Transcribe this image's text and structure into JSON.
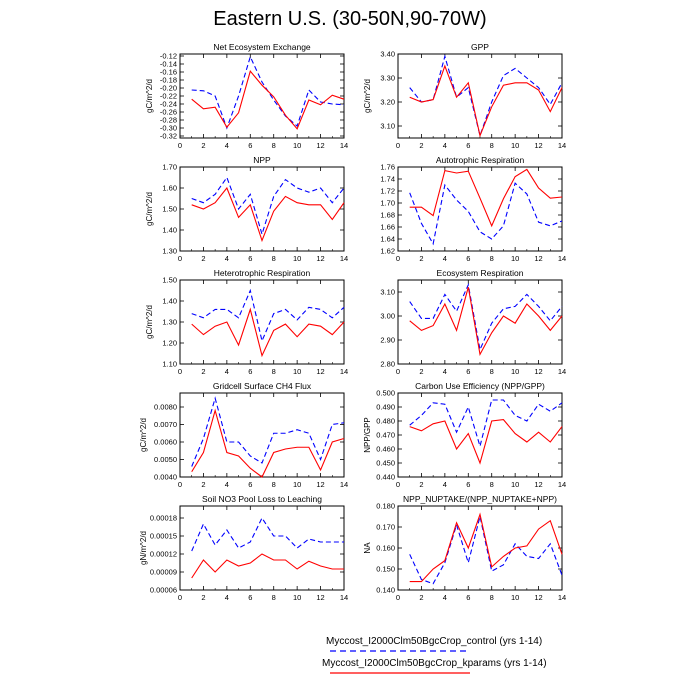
{
  "title": "Eastern U.S. (30-50N,90-70W)",
  "legend": {
    "control_label": "Myccost_I2000Clm50BgcCrop_control (yrs 1-14)",
    "kparams_label": "Myccost_I2000Clm50BgcCrop_kparams (yrs 1-14)",
    "control_color": "#0000ff",
    "kparams_color": "#ff0000"
  },
  "chart_data": [
    {
      "type": "line",
      "title": "Net Ecosystem Exchange",
      "ylabel": "gC/m^2/d",
      "xlim": [
        0,
        14
      ],
      "xticks": [
        0,
        2,
        4,
        6,
        8,
        10,
        12,
        14
      ],
      "ylim": [
        -0.325,
        -0.115
      ],
      "yticks": [
        -0.32,
        -0.3,
        -0.28,
        -0.26,
        -0.24,
        -0.22,
        -0.2,
        -0.18,
        -0.16,
        -0.14,
        -0.12
      ],
      "ytick_labels": [
        "-0.32",
        "-0.30",
        "-0.28",
        "-0.26",
        "-0.24",
        "-0.22",
        "-0.20",
        "-0.18",
        "-0.16",
        "-0.14",
        "-0.12"
      ],
      "x": [
        1,
        2,
        3,
        4,
        5,
        6,
        7,
        8,
        9,
        10,
        11,
        12,
        13,
        14
      ],
      "series": [
        {
          "values": [
            -0.205,
            -0.207,
            -0.22,
            -0.3,
            -0.22,
            -0.122,
            -0.185,
            -0.23,
            -0.27,
            -0.295,
            -0.205,
            -0.235,
            -0.24,
            -0.242
          ]
        },
        {
          "values": [
            -0.228,
            -0.252,
            -0.248,
            -0.298,
            -0.262,
            -0.158,
            -0.193,
            -0.222,
            -0.268,
            -0.302,
            -0.23,
            -0.242,
            -0.218,
            -0.228
          ]
        }
      ]
    },
    {
      "type": "line",
      "title": "GPP",
      "ylabel": "gC/m^2/d",
      "xlim": [
        0,
        14
      ],
      "xticks": [
        0,
        2,
        4,
        6,
        8,
        10,
        12,
        14
      ],
      "ylim": [
        3.05,
        3.4
      ],
      "yticks": [
        3.1,
        3.2,
        3.3,
        3.4
      ],
      "ytick_labels": [
        "3.10",
        "3.20",
        "3.30",
        "3.40"
      ],
      "x": [
        1,
        2,
        3,
        4,
        5,
        6,
        7,
        8,
        9,
        10,
        11,
        12,
        13,
        14
      ],
      "series": [
        {
          "values": [
            3.26,
            3.2,
            3.21,
            3.39,
            3.22,
            3.26,
            3.06,
            3.2,
            3.31,
            3.34,
            3.3,
            3.26,
            3.19,
            3.28
          ]
        },
        {
          "values": [
            3.22,
            3.2,
            3.21,
            3.35,
            3.22,
            3.28,
            3.06,
            3.18,
            3.27,
            3.28,
            3.28,
            3.25,
            3.16,
            3.26
          ]
        }
      ]
    },
    {
      "type": "line",
      "title": "NPP",
      "ylabel": "gC/m^2/d",
      "xlim": [
        0,
        14
      ],
      "xticks": [
        0,
        2,
        4,
        6,
        8,
        10,
        12,
        14
      ],
      "ylim": [
        1.3,
        1.7
      ],
      "yticks": [
        1.3,
        1.4,
        1.5,
        1.6,
        1.7
      ],
      "ytick_labels": [
        "1.30",
        "1.40",
        "1.50",
        "1.60",
        "1.70"
      ],
      "x": [
        1,
        2,
        3,
        4,
        5,
        6,
        7,
        8,
        9,
        10,
        11,
        12,
        13,
        14
      ],
      "series": [
        {
          "values": [
            1.55,
            1.53,
            1.57,
            1.65,
            1.5,
            1.57,
            1.38,
            1.56,
            1.64,
            1.6,
            1.58,
            1.6,
            1.53,
            1.6
          ]
        },
        {
          "values": [
            1.52,
            1.5,
            1.53,
            1.6,
            1.46,
            1.52,
            1.35,
            1.49,
            1.56,
            1.53,
            1.52,
            1.52,
            1.45,
            1.53
          ]
        }
      ]
    },
    {
      "type": "line",
      "title": "Autotrophic Respiration",
      "ylabel": "",
      "xlim": [
        0,
        14
      ],
      "xticks": [
        0,
        2,
        4,
        6,
        8,
        10,
        12,
        14
      ],
      "ylim": [
        1.62,
        1.76
      ],
      "yticks": [
        1.62,
        1.64,
        1.66,
        1.68,
        1.7,
        1.72,
        1.74,
        1.76
      ],
      "ytick_labels": [
        "1.62",
        "1.64",
        "1.66",
        "1.68",
        "1.70",
        "1.72",
        "1.74",
        "1.76"
      ],
      "x": [
        1,
        2,
        3,
        4,
        5,
        6,
        7,
        8,
        9,
        10,
        11,
        12,
        13,
        14
      ],
      "series": [
        {
          "values": [
            1.717,
            1.666,
            1.632,
            1.73,
            1.705,
            1.686,
            1.652,
            1.64,
            1.662,
            1.733,
            1.715,
            1.668,
            1.662,
            1.67
          ]
        },
        {
          "values": [
            1.693,
            1.693,
            1.679,
            1.754,
            1.75,
            1.753,
            1.708,
            1.662,
            1.707,
            1.744,
            1.756,
            1.725,
            1.708,
            1.71
          ]
        }
      ]
    },
    {
      "type": "line",
      "title": "Heterotrophic Respiration",
      "ylabel": "gC/m^2/d",
      "xlim": [
        0,
        14
      ],
      "xticks": [
        0,
        2,
        4,
        6,
        8,
        10,
        12,
        14
      ],
      "ylim": [
        1.1,
        1.5
      ],
      "yticks": [
        1.1,
        1.2,
        1.3,
        1.4,
        1.5
      ],
      "ytick_labels": [
        "1.10",
        "1.20",
        "1.30",
        "1.40",
        "1.50"
      ],
      "x": [
        1,
        2,
        3,
        4,
        5,
        6,
        7,
        8,
        9,
        10,
        11,
        12,
        13,
        14
      ],
      "series": [
        {
          "values": [
            1.34,
            1.32,
            1.36,
            1.36,
            1.32,
            1.45,
            1.21,
            1.34,
            1.36,
            1.31,
            1.37,
            1.36,
            1.32,
            1.37
          ]
        },
        {
          "values": [
            1.29,
            1.24,
            1.28,
            1.3,
            1.19,
            1.36,
            1.14,
            1.26,
            1.29,
            1.23,
            1.29,
            1.28,
            1.24,
            1.3
          ]
        }
      ]
    },
    {
      "type": "line",
      "title": "Ecosystem Respiration",
      "ylabel": "",
      "xlim": [
        0,
        14
      ],
      "xticks": [
        0,
        2,
        4,
        6,
        8,
        10,
        12,
        14
      ],
      "ylim": [
        2.8,
        3.15
      ],
      "yticks": [
        2.8,
        2.9,
        3.0,
        3.1
      ],
      "ytick_labels": [
        "2.80",
        "2.90",
        "3.00",
        "3.10"
      ],
      "x": [
        1,
        2,
        3,
        4,
        5,
        6,
        7,
        8,
        9,
        10,
        11,
        12,
        13,
        14
      ],
      "series": [
        {
          "values": [
            3.06,
            2.99,
            2.99,
            3.09,
            3.02,
            3.13,
            2.86,
            2.97,
            3.03,
            3.04,
            3.09,
            3.04,
            2.98,
            3.04
          ]
        },
        {
          "values": [
            2.98,
            2.94,
            2.96,
            3.05,
            2.94,
            3.12,
            2.84,
            2.93,
            3.0,
            2.97,
            3.05,
            3.0,
            2.94,
            3.0
          ]
        }
      ]
    },
    {
      "type": "line",
      "title": "Gridcell Surface CH4 Flux",
      "ylabel": "gC/m^2/d",
      "xlim": [
        0,
        14
      ],
      "xticks": [
        0,
        2,
        4,
        6,
        8,
        10,
        12,
        14
      ],
      "ylim": [
        0.004,
        0.0088
      ],
      "yticks": [
        0.004,
        0.005,
        0.006,
        0.007,
        0.008
      ],
      "ytick_labels": [
        "0.0040",
        "0.0050",
        "0.0060",
        "0.0070",
        "0.0080"
      ],
      "x": [
        1,
        2,
        3,
        4,
        5,
        6,
        7,
        8,
        9,
        10,
        11,
        12,
        13,
        14
      ],
      "series": [
        {
          "values": [
            0.0046,
            0.0062,
            0.0085,
            0.006,
            0.006,
            0.0052,
            0.0048,
            0.0065,
            0.0065,
            0.0067,
            0.0065,
            0.005,
            0.007,
            0.0071
          ]
        },
        {
          "values": [
            0.0043,
            0.0054,
            0.0078,
            0.0054,
            0.0052,
            0.0045,
            0.004,
            0.0054,
            0.0056,
            0.0057,
            0.0057,
            0.0044,
            0.006,
            0.0062
          ]
        }
      ]
    },
    {
      "type": "line",
      "title": "Carbon Use Efficiency (NPP/GPP)",
      "ylabel": "NPP/GPP",
      "xlim": [
        0,
        14
      ],
      "xticks": [
        0,
        2,
        4,
        6,
        8,
        10,
        12,
        14
      ],
      "ylim": [
        0.44,
        0.5
      ],
      "yticks": [
        0.44,
        0.45,
        0.46,
        0.47,
        0.48,
        0.49,
        0.5
      ],
      "ytick_labels": [
        "0.440",
        "0.450",
        "0.460",
        "0.470",
        "0.480",
        "0.490",
        "0.500"
      ],
      "x": [
        1,
        2,
        3,
        4,
        5,
        6,
        7,
        8,
        9,
        10,
        11,
        12,
        13,
        14
      ],
      "series": [
        {
          "values": [
            0.477,
            0.484,
            0.493,
            0.492,
            0.472,
            0.49,
            0.462,
            0.495,
            0.495,
            0.484,
            0.48,
            0.492,
            0.487,
            0.493
          ]
        },
        {
          "values": [
            0.476,
            0.473,
            0.478,
            0.48,
            0.46,
            0.471,
            0.45,
            0.48,
            0.481,
            0.471,
            0.465,
            0.472,
            0.465,
            0.476
          ]
        }
      ]
    },
    {
      "type": "line",
      "title": "Soil NO3 Pool Loss to Leaching",
      "ylabel": "gN/m^2/d",
      "xlim": [
        0,
        14
      ],
      "xticks": [
        0,
        2,
        4,
        6,
        8,
        10,
        12,
        14
      ],
      "ylim": [
        6e-05,
        0.0002
      ],
      "yticks": [
        6e-05,
        9e-05,
        0.00012,
        0.00015,
        0.00018
      ],
      "ytick_labels": [
        "0.00006",
        "0.00009",
        "0.00012",
        "0.00015",
        "0.00018"
      ],
      "x": [
        1,
        2,
        3,
        4,
        5,
        6,
        7,
        8,
        9,
        10,
        11,
        12,
        13,
        14
      ],
      "series": [
        {
          "values": [
            0.000125,
            0.00017,
            0.000135,
            0.00016,
            0.00013,
            0.00014,
            0.00018,
            0.00015,
            0.00015,
            0.00013,
            0.000145,
            0.00014,
            0.00014,
            0.00014
          ]
        },
        {
          "values": [
            8e-05,
            0.00011,
            9e-05,
            0.00011,
            0.0001,
            0.000105,
            0.00012,
            0.00011,
            0.00011,
            9.5e-05,
            0.000108,
            0.0001,
            9.5e-05,
            9.5e-05
          ]
        }
      ]
    },
    {
      "type": "line",
      "title": "NPP_NUPTAKE/(NPP_NUPTAKE+NPP)",
      "ylabel": "NA",
      "xlim": [
        0,
        14
      ],
      "xticks": [
        0,
        2,
        4,
        6,
        8,
        10,
        12,
        14
      ],
      "ylim": [
        0.14,
        0.18
      ],
      "yticks": [
        0.14,
        0.15,
        0.16,
        0.17,
        0.18
      ],
      "ytick_labels": [
        "0.140",
        "0.150",
        "0.160",
        "0.170",
        "0.180"
      ],
      "x": [
        1,
        2,
        3,
        4,
        5,
        6,
        7,
        8,
        9,
        10,
        11,
        12,
        13,
        14
      ],
      "series": [
        {
          "values": [
            0.157,
            0.145,
            0.143,
            0.153,
            0.171,
            0.153,
            0.175,
            0.149,
            0.152,
            0.162,
            0.156,
            0.155,
            0.162,
            0.147
          ]
        },
        {
          "values": [
            0.144,
            0.144,
            0.15,
            0.154,
            0.172,
            0.16,
            0.176,
            0.151,
            0.156,
            0.16,
            0.161,
            0.169,
            0.173,
            0.157
          ]
        }
      ]
    }
  ]
}
